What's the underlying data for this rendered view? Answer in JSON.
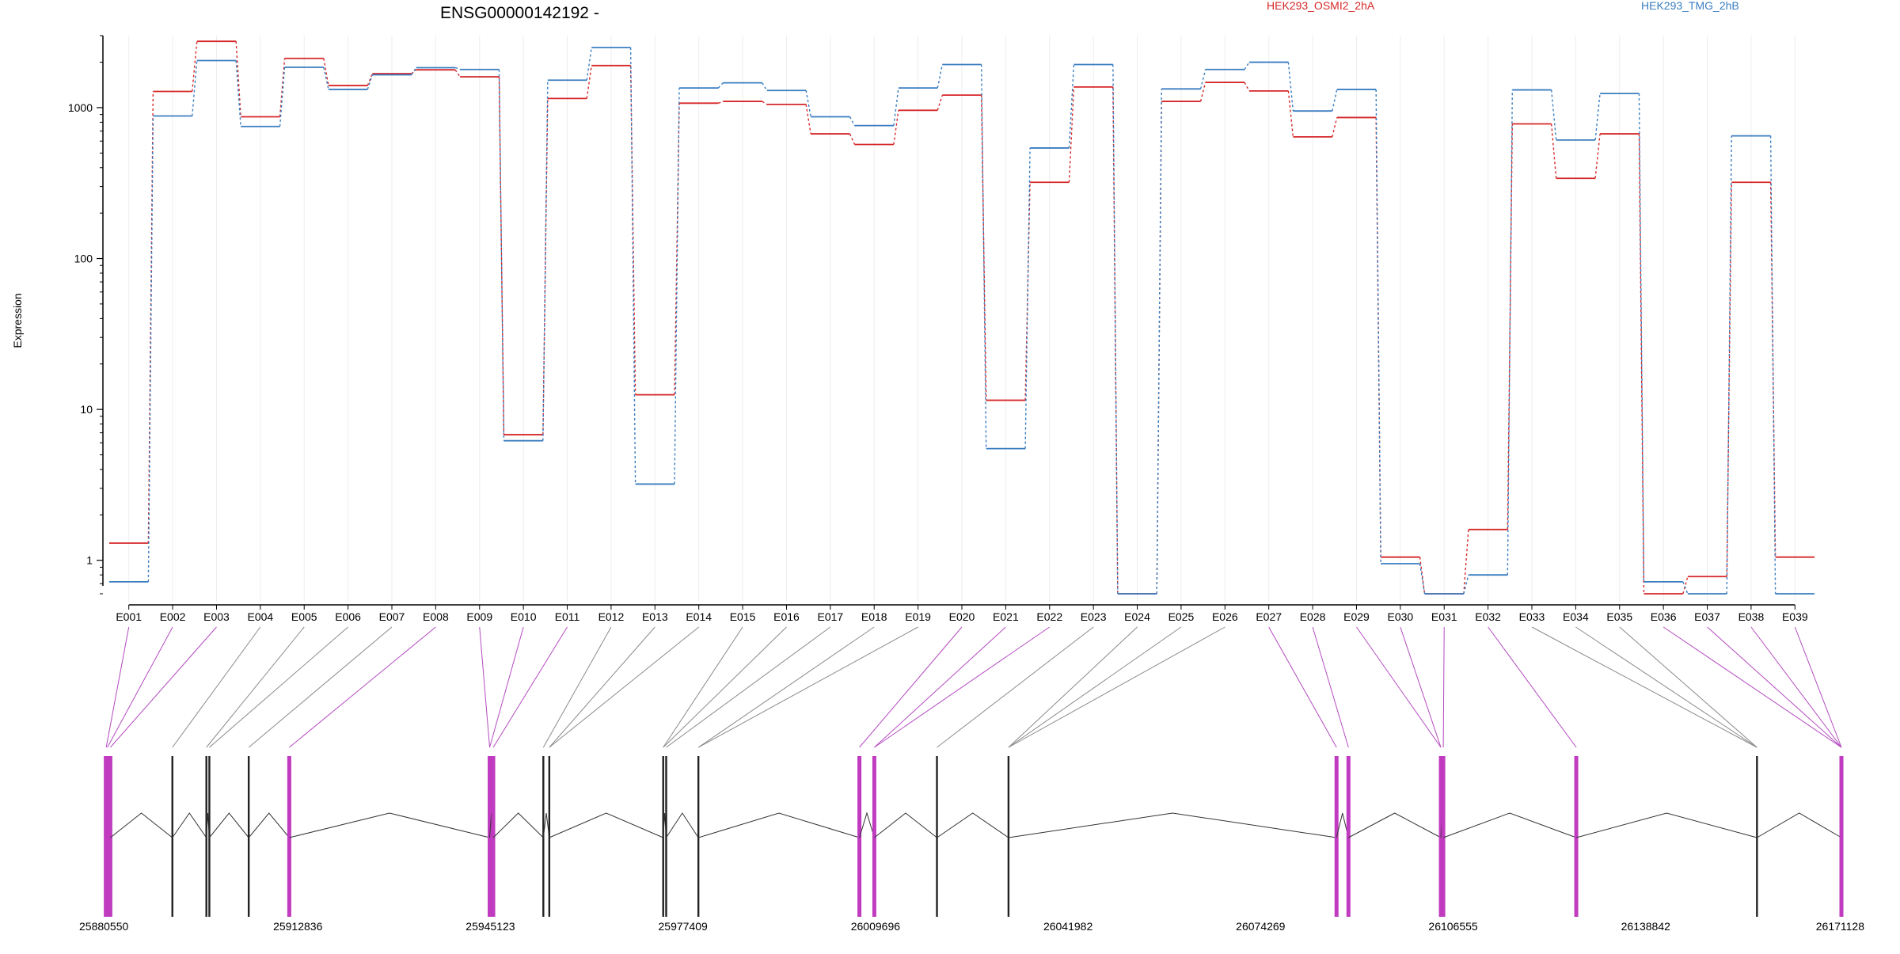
{
  "chart_data": {
    "type": "line",
    "title": "ENSG00000142192 -",
    "ylabel": "Expression",
    "xlabel": "",
    "yscale": "log",
    "ylim": [
      0.6,
      3000
    ],
    "yticks": [
      1,
      10,
      100,
      1000
    ],
    "ytick_labels": [
      "1",
      "10",
      "100",
      "1000"
    ],
    "grid": "vertical",
    "legend": "top-right",
    "categories": [
      "E001",
      "E002",
      "E003",
      "E004",
      "E005",
      "E006",
      "E007",
      "E008",
      "E009",
      "E010",
      "E011",
      "E012",
      "E013",
      "E014",
      "E015",
      "E016",
      "E017",
      "E018",
      "E019",
      "E020",
      "E021",
      "E022",
      "E023",
      "E024",
      "E025",
      "E026",
      "E027",
      "E028",
      "E029",
      "E030",
      "E031",
      "E032",
      "E033",
      "E034",
      "E035",
      "E036",
      "E037",
      "E038",
      "E039"
    ],
    "series": [
      {
        "name": "HEK293_OSMI2_2hA",
        "color": "#d62728",
        "values": [
          1.3,
          1280,
          2750,
          870,
          2120,
          1400,
          1680,
          1780,
          1600,
          6.8,
          1150,
          1900,
          12.5,
          1070,
          1100,
          1050,
          670,
          570,
          960,
          1210,
          11.5,
          320,
          1370,
          0.6,
          1100,
          1470,
          1290,
          640,
          860,
          1.05,
          0.6,
          1.6,
          780,
          340,
          670,
          0.6,
          0.78,
          320,
          1.05
        ]
      },
      {
        "name": "HEK293_TMG_2hB",
        "color": "#3a7dc0",
        "values": [
          0.72,
          880,
          2050,
          750,
          1850,
          1320,
          1650,
          1840,
          1790,
          6.2,
          1520,
          2500,
          3.2,
          1350,
          1460,
          1300,
          870,
          760,
          1350,
          1930,
          5.5,
          540,
          1930,
          0.6,
          1330,
          1790,
          2000,
          950,
          1320,
          0.95,
          0.6,
          0.8,
          1310,
          610,
          1240,
          0.72,
          0.6,
          650,
          0.6
        ]
      }
    ],
    "gene_track": {
      "coordinate_labels": [
        "25880550",
        "25912836",
        "25945123",
        "25977409",
        "26009696",
        "26041982",
        "26074269",
        "26106555",
        "26138842",
        "26171128"
      ],
      "range": [
        25880550,
        26171128
      ],
      "exon_positions": [
        25880700,
        25880900,
        25881400,
        25891800,
        25897500,
        25898000,
        25904600,
        25911400,
        25945000,
        25945600,
        25954000,
        25955000,
        25974100,
        25974600,
        25980000,
        26007000,
        26009500,
        26020000,
        26032000,
        26087000,
        26089000,
        26104500,
        26104900,
        26127200,
        26157500,
        26172300,
        26172900
      ],
      "highlighted_exons": [
        true,
        true,
        true,
        false,
        false,
        false,
        false,
        true,
        true,
        true,
        false,
        false,
        false,
        false,
        false,
        true,
        true,
        false,
        false,
        true,
        true,
        true,
        true,
        true,
        false,
        true,
        true
      ]
    }
  }
}
